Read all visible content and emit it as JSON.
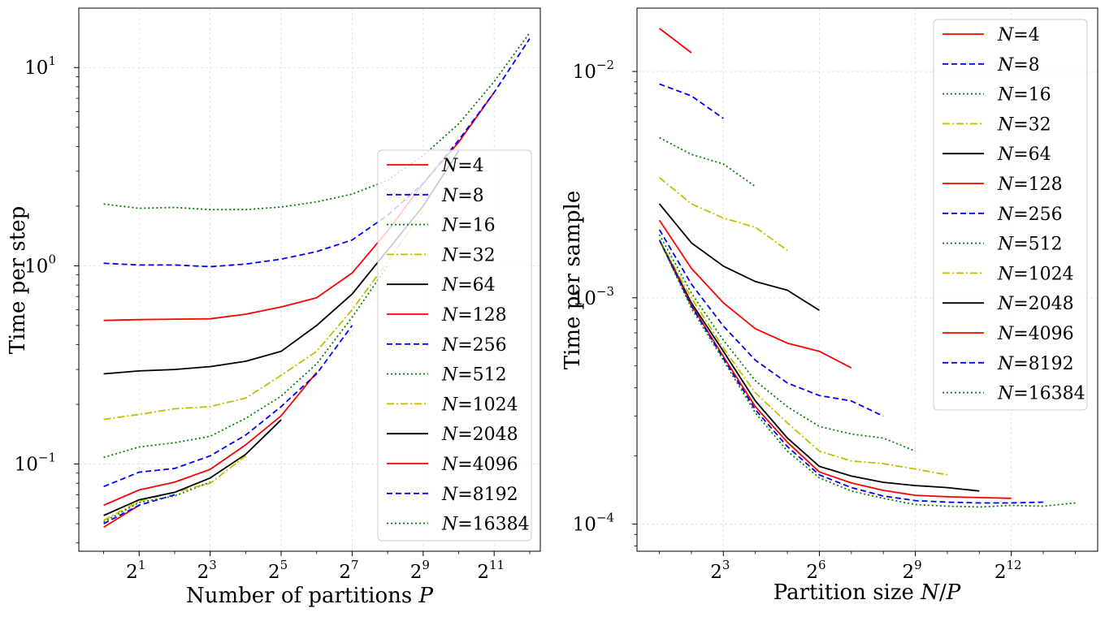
{
  "chart_data": [
    {
      "type": "line",
      "xscale": "log2",
      "yscale": "log10",
      "xlabel": "Number of partitions P",
      "ylabel": "Time per step",
      "xlim_log2": [
        -0.7,
        12.3
      ],
      "ylim_log10": [
        -1.44,
        1.3
      ],
      "xticks": [
        {
          "base": "2",
          "exp": "1"
        },
        {
          "base": "2",
          "exp": "3"
        },
        {
          "base": "2",
          "exp": "5"
        },
        {
          "base": "2",
          "exp": "7"
        },
        {
          "base": "2",
          "exp": "9"
        },
        {
          "base": "2",
          "exp": "11"
        }
      ],
      "yticks": [
        {
          "base": "10",
          "exp": "−1"
        },
        {
          "base": "10",
          "exp": "0"
        },
        {
          "base": "10",
          "exp": "1"
        }
      ],
      "grid": true,
      "legend_position": "lower-right",
      "series": [
        {
          "name": "N=4",
          "label_var": "N",
          "label_val": "=4",
          "color": "#ff0000",
          "dash": "solid",
          "p_log2": [
            0,
            1
          ],
          "y": [
            0.048,
            0.062
          ]
        },
        {
          "name": "N=8",
          "label_var": "N",
          "label_val": "=8",
          "color": "#0000ff",
          "dash": "dashed",
          "p_log2": [
            0,
            1,
            2
          ],
          "y": [
            0.05,
            0.062,
            0.07
          ]
        },
        {
          "name": "N=16",
          "label_var": "N",
          "label_val": "=16",
          "color": "#008000",
          "dash": "dotted",
          "p_log2": [
            0,
            1,
            2,
            3
          ],
          "y": [
            0.051,
            0.064,
            0.069,
            0.081
          ]
        },
        {
          "name": "N=32",
          "label_var": "N",
          "label_val": "=32",
          "color": "#bfbf00",
          "dash": "dashdot",
          "p_log2": [
            0,
            1,
            2,
            3,
            4
          ],
          "y": [
            0.052,
            0.065,
            0.072,
            0.08,
            0.11
          ]
        },
        {
          "name": "N=64",
          "label_var": "N",
          "label_val": "=64",
          "color": "#000000",
          "dash": "solid",
          "p_log2": [
            0,
            1,
            2,
            3,
            4,
            5
          ],
          "y": [
            0.055,
            0.066,
            0.072,
            0.085,
            0.112,
            0.167
          ]
        },
        {
          "name": "N=128",
          "label_var": "N",
          "label_val": "=128",
          "color": "#ff0000",
          "dash": "solid",
          "p_log2": [
            0,
            1,
            2,
            3,
            4,
            5,
            6
          ],
          "y": [
            0.062,
            0.074,
            0.081,
            0.094,
            0.125,
            0.175,
            0.29
          ]
        },
        {
          "name": "N=256",
          "label_var": "N",
          "label_val": "=256",
          "color": "#0000ff",
          "dash": "dashed",
          "p_log2": [
            0,
            1,
            2,
            3,
            4,
            5,
            6,
            7
          ],
          "y": [
            0.077,
            0.091,
            0.095,
            0.11,
            0.14,
            0.195,
            0.285,
            0.5
          ]
        },
        {
          "name": "N=512",
          "label_var": "N",
          "label_val": "=512",
          "color": "#008000",
          "dash": "dotted",
          "p_log2": [
            0,
            1,
            2,
            3,
            4,
            5,
            6,
            7,
            8
          ],
          "y": [
            0.108,
            0.122,
            0.128,
            0.138,
            0.17,
            0.22,
            0.32,
            0.55,
            1.0
          ]
        },
        {
          "name": "N=1024",
          "label_var": "N",
          "label_val": "=1024",
          "color": "#bfbf00",
          "dash": "dashdot",
          "p_log2": [
            0,
            1,
            2,
            3,
            4,
            5,
            6,
            7,
            8,
            9
          ],
          "y": [
            0.168,
            0.178,
            0.19,
            0.195,
            0.215,
            0.28,
            0.37,
            0.6,
            1.05,
            1.9
          ]
        },
        {
          "name": "N=2048",
          "label_var": "N",
          "label_val": "=2048",
          "color": "#000000",
          "dash": "solid",
          "p_log2": [
            0,
            1,
            2,
            3,
            4,
            5,
            6,
            7,
            8,
            9,
            10
          ],
          "y": [
            0.285,
            0.295,
            0.3,
            0.31,
            0.33,
            0.37,
            0.5,
            0.72,
            1.2,
            2.0,
            3.8
          ]
        },
        {
          "name": "N=4096",
          "label_var": "N",
          "label_val": "=4096",
          "color": "#ff0000",
          "dash": "solid",
          "p_log2": [
            0,
            1,
            2,
            3,
            4,
            5,
            6,
            7,
            8,
            9,
            10,
            11
          ],
          "y": [
            0.53,
            0.535,
            0.538,
            0.54,
            0.57,
            0.62,
            0.69,
            0.92,
            1.5,
            2.6,
            4.2,
            7.5
          ]
        },
        {
          "name": "N=8192",
          "label_var": "N",
          "label_val": "=8192",
          "color": "#0000ff",
          "dash": "dashed",
          "p_log2": [
            0,
            1,
            2,
            3,
            4,
            5,
            6,
            7,
            8,
            9,
            10,
            11,
            12
          ],
          "y": [
            1.03,
            1.01,
            1.01,
            0.99,
            1.02,
            1.08,
            1.18,
            1.35,
            1.8,
            2.6,
            4.3,
            7.5,
            14.0
          ]
        },
        {
          "name": "N=16384",
          "label_var": "N",
          "label_val": "=16384",
          "color": "#008000",
          "dash": "dotted",
          "p_log2": [
            0,
            1,
            2,
            3,
            4,
            5,
            6,
            7,
            8,
            9,
            10,
            11,
            12
          ],
          "y": [
            2.05,
            1.95,
            1.97,
            1.92,
            1.92,
            1.98,
            2.1,
            2.3,
            2.7,
            3.6,
            5.2,
            8.5,
            15.0
          ]
        }
      ]
    },
    {
      "type": "line",
      "xscale": "log2",
      "yscale": "log10",
      "xlabel": "Partition size N/P",
      "ylabel": "Time per sample",
      "xlim_log2": [
        0.3,
        14.7
      ],
      "ylim_log10": [
        -4.12,
        -1.72
      ],
      "xticks": [
        {
          "base": "2",
          "exp": "3"
        },
        {
          "base": "2",
          "exp": "6"
        },
        {
          "base": "2",
          "exp": "9"
        },
        {
          "base": "2",
          "exp": "12"
        }
      ],
      "yticks": [
        {
          "base": "10",
          "exp": "−4"
        },
        {
          "base": "10",
          "exp": "−3"
        },
        {
          "base": "10",
          "exp": "−2"
        }
      ],
      "grid": true,
      "legend_position": "upper-right",
      "series": [
        {
          "name": "N=4",
          "label_var": "N",
          "label_val": "=4",
          "color": "#ff0000",
          "dash": "solid",
          "size_log2": [
            1,
            2
          ],
          "y": [
            0.0155,
            0.0121
          ]
        },
        {
          "name": "N=8",
          "label_var": "N",
          "label_val": "=8",
          "color": "#0000ff",
          "dash": "dashed",
          "size_log2": [
            1,
            2,
            3
          ],
          "y": [
            0.0088,
            0.0078,
            0.0062
          ]
        },
        {
          "name": "N=16",
          "label_var": "N",
          "label_val": "=16",
          "color": "#008000",
          "dash": "dotted",
          "size_log2": [
            1,
            2,
            3,
            4
          ],
          "y": [
            0.0051,
            0.0043,
            0.0039,
            0.0031
          ]
        },
        {
          "name": "N=32",
          "label_var": "N",
          "label_val": "=32",
          "color": "#bfbf00",
          "dash": "dashdot",
          "size_log2": [
            1,
            2,
            3,
            4,
            5
          ],
          "y": [
            0.0034,
            0.0026,
            0.00225,
            0.00205,
            0.00162
          ]
        },
        {
          "name": "N=64",
          "label_var": "N",
          "label_val": "=64",
          "color": "#000000",
          "dash": "solid",
          "size_log2": [
            1,
            2,
            3,
            4,
            5,
            6
          ],
          "y": [
            0.0026,
            0.00175,
            0.00138,
            0.00118,
            0.00108,
            0.00088
          ]
        },
        {
          "name": "N=128",
          "label_var": "N",
          "label_val": "=128",
          "color": "#ff0000",
          "dash": "solid",
          "size_log2": [
            1,
            2,
            3,
            4,
            5,
            6,
            7
          ],
          "y": [
            0.0022,
            0.00135,
            0.00095,
            0.00073,
            0.00063,
            0.00058,
            0.00049
          ]
        },
        {
          "name": "N=256",
          "label_var": "N",
          "label_val": "=256",
          "color": "#0000ff",
          "dash": "dashed",
          "size_log2": [
            1,
            2,
            3,
            4,
            5,
            6,
            7,
            8
          ],
          "y": [
            0.002,
            0.00115,
            0.00075,
            0.00053,
            0.00042,
            0.00037,
            0.00035,
            0.0003
          ]
        },
        {
          "name": "N=512",
          "label_var": "N",
          "label_val": "=512",
          "color": "#008000",
          "dash": "dotted",
          "size_log2": [
            1,
            2,
            3,
            4,
            5,
            6,
            7,
            8,
            9
          ],
          "y": [
            0.0019,
            0.00105,
            0.00065,
            0.00043,
            0.00033,
            0.00027,
            0.00025,
            0.00024,
            0.00021
          ]
        },
        {
          "name": "N=1024",
          "label_var": "N",
          "label_val": "=1024",
          "color": "#bfbf00",
          "dash": "dashdot",
          "size_log2": [
            1,
            2,
            3,
            4,
            5,
            6,
            7,
            8,
            9,
            10
          ],
          "y": [
            0.0018,
            0.001,
            0.0006,
            0.00038,
            0.00028,
            0.00021,
            0.00019,
            0.000185,
            0.000175,
            0.000165
          ]
        },
        {
          "name": "N=2048",
          "label_var": "N",
          "label_val": "=2048",
          "color": "#000000",
          "dash": "solid",
          "size_log2": [
            1,
            2,
            3,
            4,
            5,
            6,
            7,
            8,
            9,
            10,
            11
          ],
          "y": [
            0.0018,
            0.00095,
            0.00058,
            0.00035,
            0.00024,
            0.00018,
            0.000163,
            0.000153,
            0.000148,
            0.000145,
            0.00014
          ]
        },
        {
          "name": "N=4096",
          "label_var": "N",
          "label_val": "=4096",
          "color": "#ff0000",
          "dash": "solid",
          "size_log2": [
            1,
            2,
            3,
            4,
            5,
            6,
            7,
            8,
            9,
            10,
            11,
            12
          ],
          "y": [
            0.0018,
            0.00093,
            0.00055,
            0.00033,
            0.00023,
            0.00017,
            0.000152,
            0.000141,
            0.000134,
            0.000132,
            0.000131,
            0.00013
          ]
        },
        {
          "name": "N=8192",
          "label_var": "N",
          "label_val": "=8192",
          "color": "#0000ff",
          "dash": "dashed",
          "size_log2": [
            1,
            2,
            3,
            4,
            5,
            6,
            7,
            8,
            9,
            10,
            11,
            12,
            13
          ],
          "y": [
            0.0018,
            0.00092,
            0.00054,
            0.00032,
            0.00022,
            0.000165,
            0.000145,
            0.000133,
            0.000127,
            0.000125,
            0.000124,
            0.000124,
            0.000125
          ]
        },
        {
          "name": "N=16384",
          "label_var": "N",
          "label_val": "=16384",
          "color": "#008000",
          "dash": "dotted",
          "size_log2": [
            1,
            2,
            3,
            4,
            5,
            6,
            7,
            8,
            9,
            10,
            11,
            12,
            13,
            14
          ],
          "y": [
            0.0018,
            0.0009,
            0.00053,
            0.00031,
            0.00021,
            0.00016,
            0.00014,
            0.00013,
            0.000122,
            0.00012,
            0.000119,
            0.000121,
            0.00012,
            0.000124
          ]
        }
      ]
    }
  ]
}
